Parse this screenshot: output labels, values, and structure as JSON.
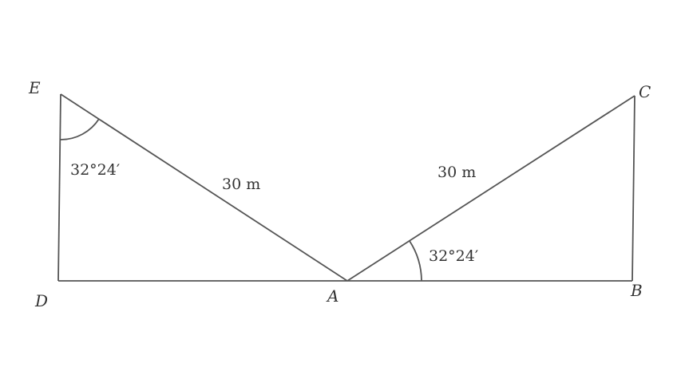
{
  "points": [
    "E",
    "C",
    "D",
    "A",
    "B"
  ],
  "sides": [
    "30 m",
    "30 m"
  ],
  "angles": [
    "32°24′",
    "32°24′"
  ]
}
